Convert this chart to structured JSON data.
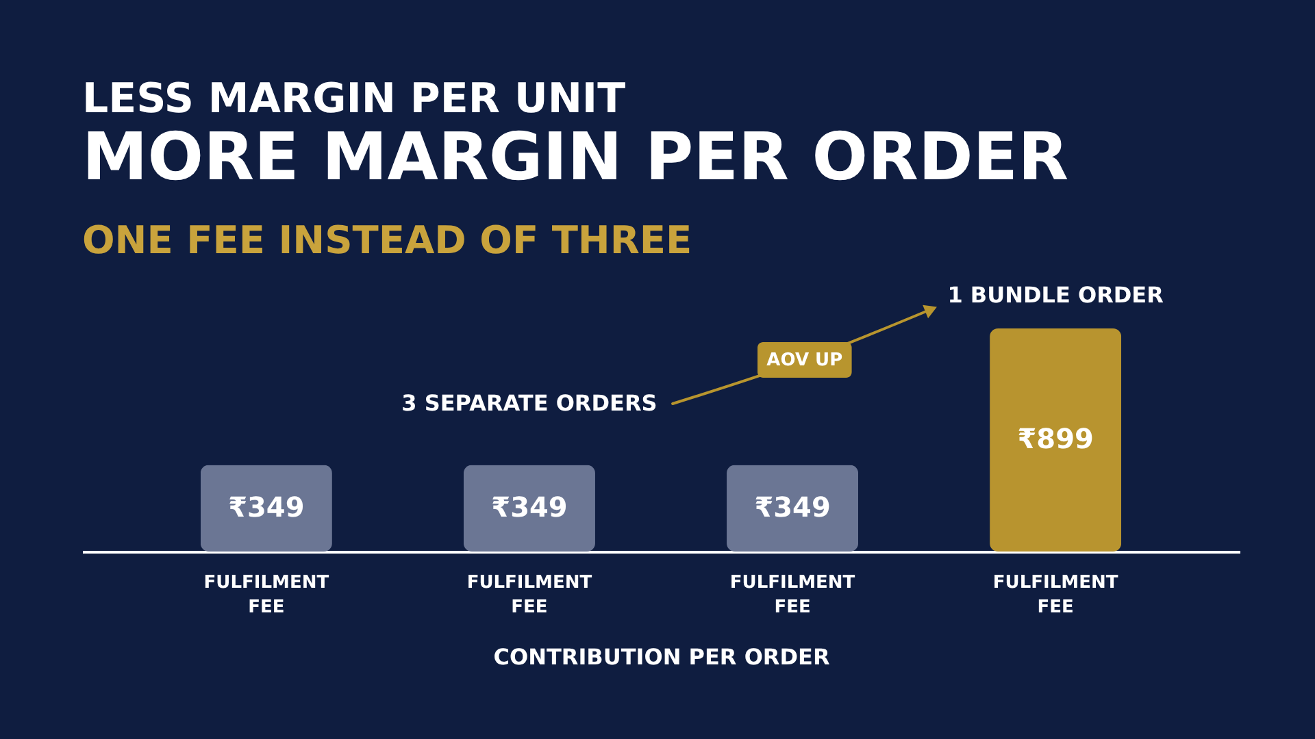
{
  "chart_data": {
    "type": "bar",
    "title": "LESS MARGIN PER UNIT",
    "subtitle": "MORE MARGIN PER ORDER",
    "xlabel": "CONTRIBUTION PER ORDER",
    "categories": [
      "FULFILMENT FEE",
      "FULFILMENT FEE",
      "FULFILMENT FEE",
      "FULFILMENT FEE"
    ],
    "values": [
      349,
      349,
      349,
      899
    ],
    "colors": [
      "#6b7694",
      "#6b7694",
      "#6b7694",
      "#b8942f"
    ],
    "value_labels": [
      "₹349",
      "₹349",
      "₹349",
      "₹899"
    ],
    "annotations": [
      "ONE FEE INSTEAD OF THREE",
      "3 SEPARATE ORDERS",
      "AOV UP",
      "1 BUNDLE ORDER"
    ],
    "tick_labels": "x"
  }
}
